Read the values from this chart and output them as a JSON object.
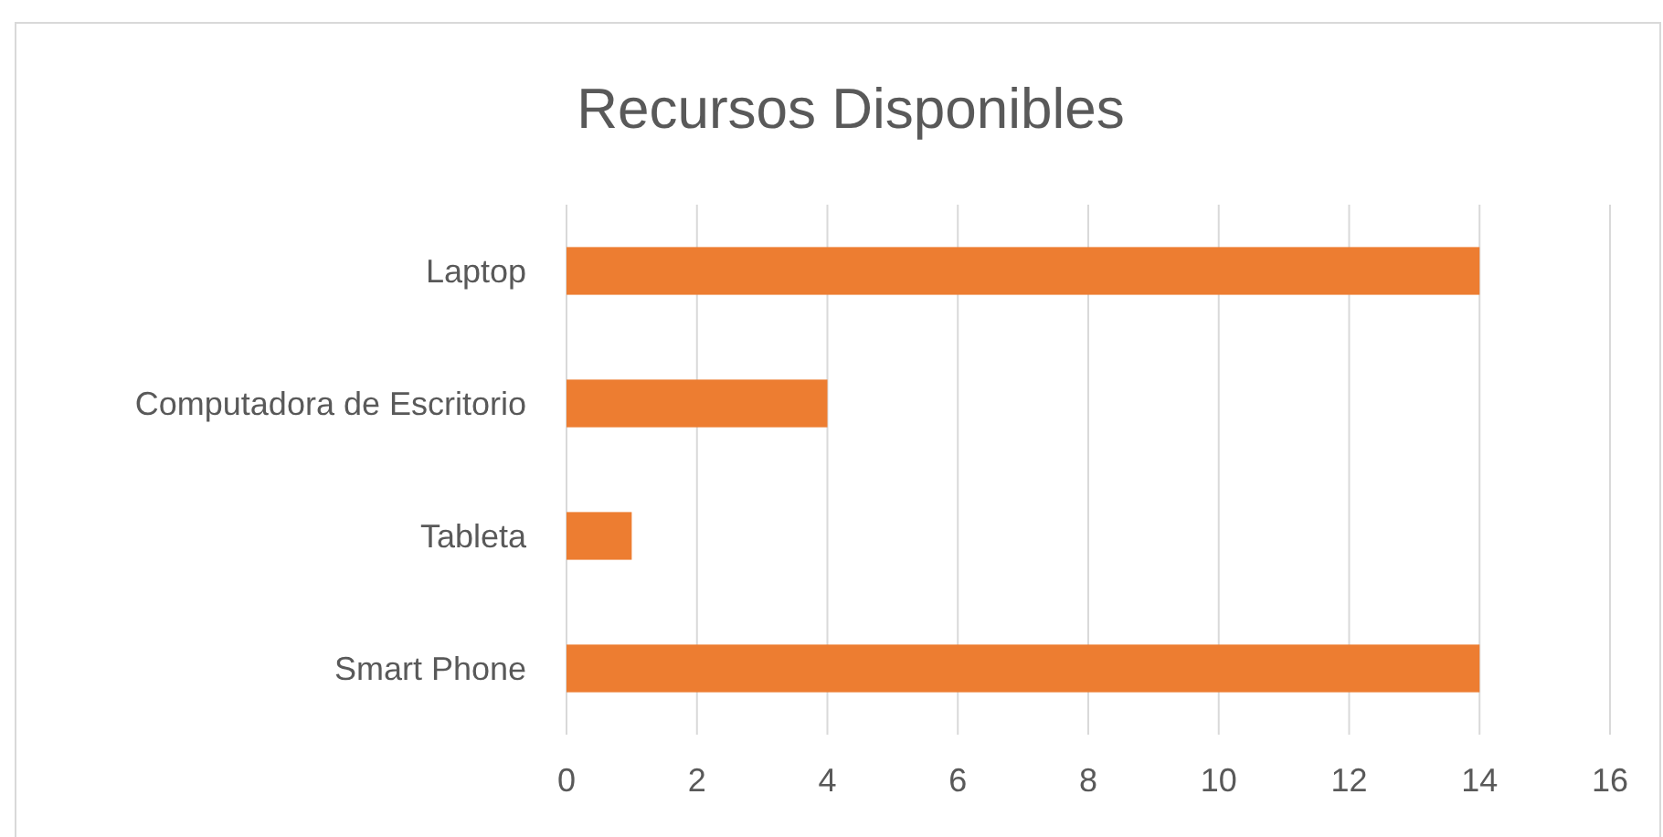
{
  "chart_data": {
    "type": "bar",
    "orientation": "horizontal",
    "title": "Recursos Disponibles",
    "categories": [
      "Laptop",
      "Computadora de Escritorio",
      "Tableta",
      "Smart Phone"
    ],
    "values": [
      14,
      4,
      1,
      14
    ],
    "color": "#ed7d31",
    "xlim": [
      0,
      16
    ],
    "xticks": [
      0,
      2,
      4,
      6,
      8,
      10,
      12,
      14,
      16
    ],
    "grid": "x"
  }
}
